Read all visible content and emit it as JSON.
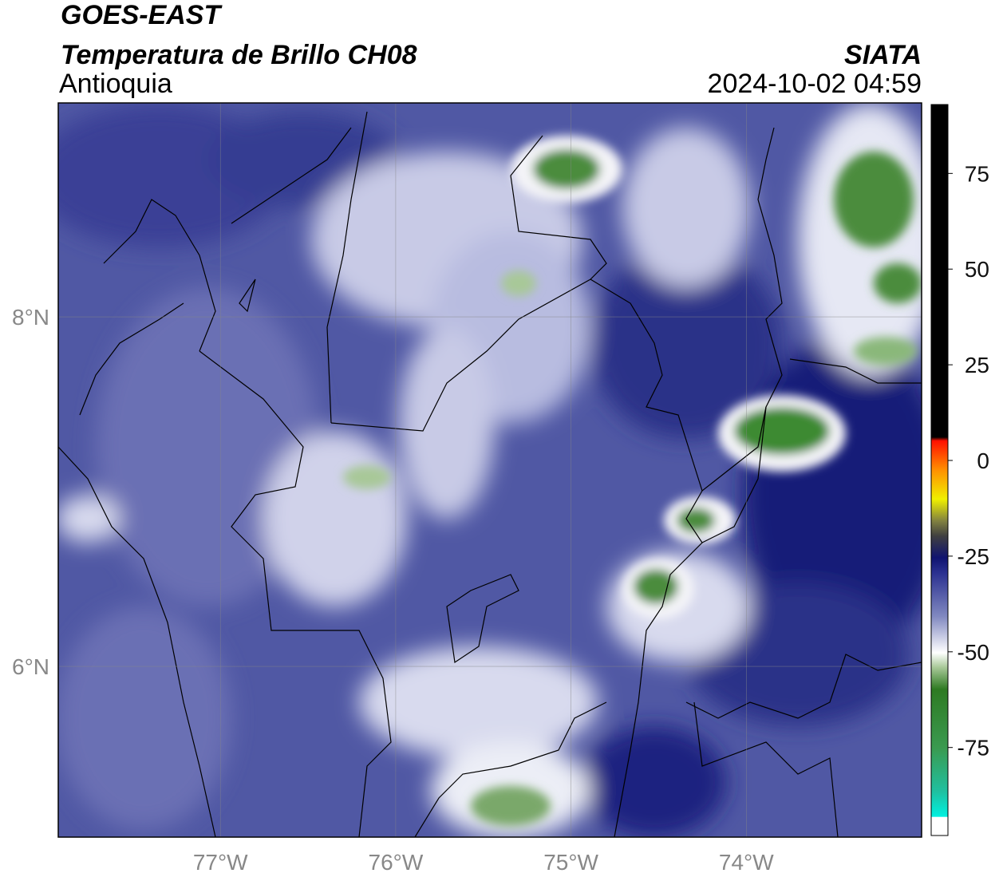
{
  "header": {
    "title": "GOES-EAST",
    "subtitle": "Temperatura de Brillo CH08",
    "region": "Antioquia",
    "source": "SIATA",
    "datetime": "2024-10-02 04:59"
  },
  "map": {
    "lonlim": [
      -77.925,
      -73.0
    ],
    "latlim": [
      5.023,
      9.224
    ],
    "lon_ticks": [
      {
        "value": -77,
        "label": "77°W"
      },
      {
        "value": -76,
        "label": "76°W"
      },
      {
        "value": -75,
        "label": "75°W"
      },
      {
        "value": -74,
        "label": "74°W"
      }
    ],
    "lat_ticks": [
      {
        "value": 8,
        "label": "8°N"
      },
      {
        "value": 6,
        "label": "6°N"
      }
    ],
    "grid": true
  },
  "colorbar": {
    "lim": [
      -98,
      93
    ],
    "ticks": [
      75,
      50,
      25,
      0,
      -25,
      -50,
      -75
    ]
  }
}
